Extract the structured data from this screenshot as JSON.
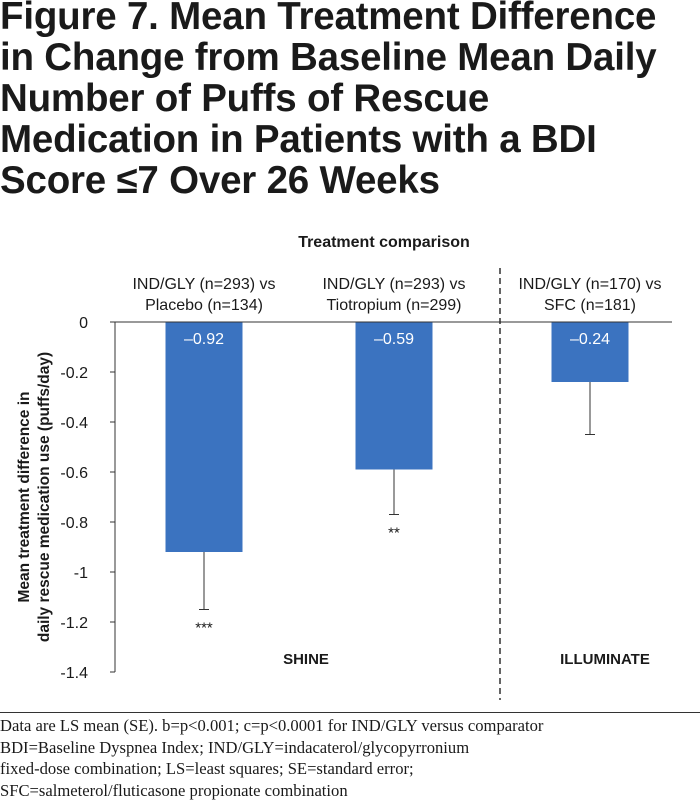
{
  "figure": {
    "title": "Figure 7. Mean Treatment Difference\nin Change from Baseline Mean Daily\nNumber of Puffs of Rescue\nMedication in Patients with a BDI\nScore ≤7 Over 26 Weeks"
  },
  "chart_data": {
    "type": "bar",
    "title": "Treatment comparison",
    "ylabel": "Mean treatment difference in daily rescue medication use (puffs/day)",
    "ylabel_lines": [
      "Mean treatment difference in",
      "daily rescue medication use (puffs/day)"
    ],
    "ylim": [
      -1.4,
      0
    ],
    "yticks": [
      0,
      -0.2,
      -0.4,
      -0.6,
      -0.8,
      -1,
      -1.2,
      -1.4
    ],
    "ytick_labels": [
      "0",
      "-0.2",
      "-0.4",
      "-0.6",
      "-0.8",
      "-1",
      "-1.2",
      "-1.4"
    ],
    "categories": [
      [
        "IND/GLY (n=293) vs",
        "Placebo (n=134)"
      ],
      [
        "IND/GLY (n=293) vs",
        "Tiotropium (n=299)"
      ],
      [
        "IND/GLY (n=170) vs",
        "SFC (n=181)"
      ]
    ],
    "values": [
      -0.92,
      -0.59,
      -0.24
    ],
    "value_labels": [
      "–0.92",
      "–0.59",
      "–0.24"
    ],
    "error_low": [
      -1.15,
      -0.77,
      -0.45
    ],
    "significance": [
      "***",
      "**",
      ""
    ],
    "study_groups": [
      {
        "label": "SHINE",
        "categories": [
          0,
          1
        ]
      },
      {
        "label": "ILLUMINATE",
        "categories": [
          2
        ]
      }
    ],
    "grid": false,
    "bar_color": "#3b73c0"
  },
  "footnote": {
    "lines": [
      "Data are LS mean (SE). b=p<0.001; c=p<0.0001 for IND/GLY versus comparator",
      "BDI=Baseline Dyspnea Index; IND/GLY=indacaterol/glycopyrronium",
      "fixed-dose combination; LS=least squares; SE=standard error;",
      "SFC=salmeterol/fluticasone propionate combination"
    ]
  }
}
